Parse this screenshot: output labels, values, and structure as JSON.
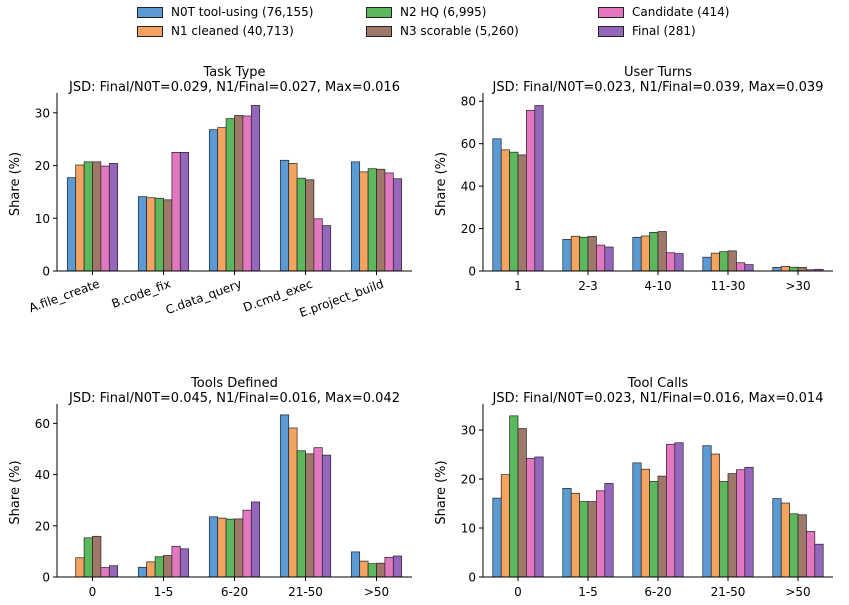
{
  "legend": [
    {
      "label": "N0T tool-using (76,155)",
      "color": "#5b9bd5"
    },
    {
      "label": "N1 cleaned (40,713)",
      "color": "#f4a460"
    },
    {
      "label": "N2 HQ (6,995)",
      "color": "#5cb85c"
    },
    {
      "label": "N3 scorable (5,260)",
      "color": "#a0786a"
    },
    {
      "label": "Candidate (414)",
      "color": "#e377c2"
    },
    {
      "label": "Final (281)",
      "color": "#9467bd"
    }
  ],
  "chart_data": [
    {
      "type": "bar",
      "title": "Task Type",
      "subtitle": "JSD: Final/N0T=0.029, N1/Final=0.027, Max=0.016",
      "ylabel": "Share (%)",
      "ylim": [
        0,
        33
      ],
      "yticks": [
        0,
        10,
        20,
        30
      ],
      "categories": [
        "A.file_create",
        "B.code_fix",
        "C.data_query",
        "D.cmd_exec",
        "E.project_build"
      ],
      "series": [
        {
          "name": "N0T tool-using (76,155)",
          "values": [
            17.7,
            14.1,
            26.8,
            21.0,
            20.7
          ]
        },
        {
          "name": "N1 cleaned (40,713)",
          "values": [
            20.1,
            13.9,
            27.2,
            20.4,
            18.8
          ]
        },
        {
          "name": "N2 HQ (6,995)",
          "values": [
            20.7,
            13.8,
            28.9,
            17.6,
            19.4
          ]
        },
        {
          "name": "N3 scorable (5,260)",
          "values": [
            20.7,
            13.5,
            29.5,
            17.3,
            19.3
          ]
        },
        {
          "name": "Candidate (414)",
          "values": [
            19.9,
            22.5,
            29.4,
            9.9,
            18.6
          ]
        },
        {
          "name": "Final (281)",
          "values": [
            20.4,
            22.5,
            31.4,
            8.6,
            17.5
          ]
        }
      ]
    },
    {
      "type": "bar",
      "title": "User Turns",
      "subtitle": "JSD: Final/N0T=0.023, N1/Final=0.039, Max=0.039",
      "ylabel": "Share (%)",
      "ylim": [
        0,
        82
      ],
      "yticks": [
        0,
        20,
        40,
        60,
        80
      ],
      "categories": [
        "1",
        "2-3",
        "4-10",
        "11-30",
        ">30"
      ],
      "series": [
        {
          "name": "N0T tool-using (76,155)",
          "values": [
            62.3,
            14.9,
            15.9,
            6.5,
            1.7
          ]
        },
        {
          "name": "N1 cleaned (40,713)",
          "values": [
            57.1,
            16.4,
            16.5,
            8.4,
            2.2
          ]
        },
        {
          "name": "N2 HQ (6,995)",
          "values": [
            56.0,
            15.9,
            18.2,
            9.1,
            1.8
          ]
        },
        {
          "name": "N3 scorable (5,260)",
          "values": [
            54.7,
            16.3,
            18.6,
            9.5,
            1.7
          ]
        },
        {
          "name": "Candidate (414)",
          "values": [
            75.7,
            12.2,
            8.6,
            3.9,
            0.6
          ]
        },
        {
          "name": "Final (281)",
          "values": [
            78.0,
            11.3,
            8.2,
            3.0,
            0.8
          ]
        }
      ]
    },
    {
      "type": "bar",
      "title": "Tools Defined",
      "subtitle": "JSD: Final/N0T=0.045, N1/Final=0.016, Max=0.042",
      "ylabel": "Share (%)",
      "ylim": [
        0,
        66
      ],
      "yticks": [
        0,
        20,
        40,
        60
      ],
      "categories": [
        "0",
        "1-5",
        "6-20",
        "21-50",
        ">50"
      ],
      "series": [
        {
          "name": "N0T tool-using (76,155)",
          "values": [
            0.0,
            3.8,
            23.5,
            63.3,
            9.8
          ]
        },
        {
          "name": "N1 cleaned (40,713)",
          "values": [
            7.5,
            5.9,
            23.0,
            58.2,
            6.2
          ]
        },
        {
          "name": "N2 HQ (6,995)",
          "values": [
            15.3,
            7.9,
            22.6,
            49.3,
            5.2
          ]
        },
        {
          "name": "N3 scorable (5,260)",
          "values": [
            15.9,
            8.4,
            22.7,
            48.1,
            5.4
          ]
        },
        {
          "name": "Candidate (414)",
          "values": [
            3.7,
            12.0,
            26.1,
            50.5,
            7.7
          ]
        },
        {
          "name": "Final (281)",
          "values": [
            4.4,
            11.0,
            29.3,
            47.6,
            8.2
          ]
        }
      ]
    },
    {
      "type": "bar",
      "title": "Tool Calls",
      "subtitle": "JSD: Final/N0T=0.023, N1/Final=0.016, Max=0.014",
      "ylabel": "Share (%)",
      "ylim": [
        0,
        34.5
      ],
      "yticks": [
        0,
        10,
        20,
        30
      ],
      "categories": [
        "0",
        "1-5",
        "6-20",
        "21-50",
        ">50"
      ],
      "series": [
        {
          "name": "N0T tool-using (76,155)",
          "values": [
            16.1,
            18.1,
            23.3,
            26.8,
            16.0
          ]
        },
        {
          "name": "N1 cleaned (40,713)",
          "values": [
            20.9,
            17.1,
            22.0,
            25.1,
            15.1
          ]
        },
        {
          "name": "N2 HQ (6,995)",
          "values": [
            32.9,
            15.4,
            19.5,
            19.5,
            12.9
          ]
        },
        {
          "name": "N3 scorable (5,260)",
          "values": [
            30.3,
            15.4,
            20.6,
            21.1,
            12.7
          ]
        },
        {
          "name": "Candidate (414)",
          "values": [
            24.2,
            17.6,
            27.1,
            21.9,
            9.3
          ]
        },
        {
          "name": "Final (281)",
          "values": [
            24.5,
            19.1,
            27.4,
            22.4,
            6.7
          ]
        }
      ]
    }
  ]
}
